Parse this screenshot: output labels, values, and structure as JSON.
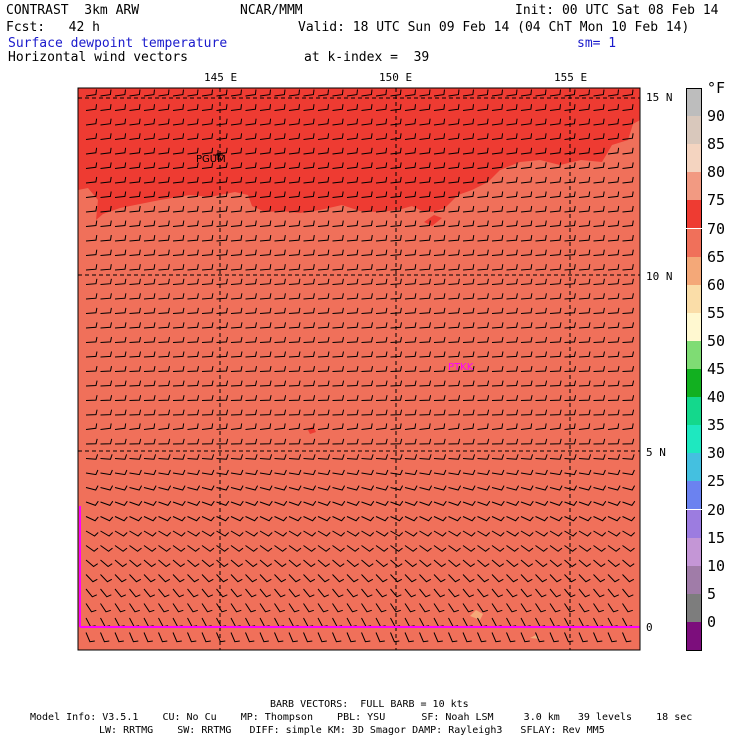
{
  "header": {
    "model": "CONTRAST  3km ARW",
    "org": "NCAR/MMM",
    "init": "Init: 00 UTC Sat 08 Feb 14",
    "fcst": "Fcst:   42 h",
    "valid": "Valid: 18 UTC Sun 09 Feb 14 (04 ChT Mon 10 Feb 14)",
    "field1": "Surface dewpoint temperature",
    "smoothing": "sm= 1",
    "field2": "Horizontal wind vectors",
    "kindex": "at k-index =  39"
  },
  "axes": {
    "lon_labels": [
      "145 E",
      "150 E",
      "155 E"
    ],
    "lat_labels": [
      "15 N",
      "10 N",
      "5 N",
      "0"
    ]
  },
  "stations": [
    {
      "id": "PGUM",
      "color": "#000000"
    },
    {
      "id": "PTKK",
      "color": "#ff00ff"
    }
  ],
  "colorbar": {
    "unit": "°F",
    "labels": [
      "90",
      "85",
      "80",
      "75",
      "70",
      "65",
      "60",
      "55",
      "50",
      "45",
      "40",
      "35",
      "30",
      "25",
      "20",
      "15",
      "10",
      "5",
      "0"
    ],
    "colors": [
      "#bdbdbd",
      "#d9c8bc",
      "#f4d4c0",
      "#f29a82",
      "#ee3b32",
      "#f0705a",
      "#f4a878",
      "#fadda8",
      "#fff8d0",
      "#7fdc74",
      "#12b020",
      "#14d88c",
      "#1ee8c0",
      "#44c0e0",
      "#6b82f0",
      "#9c7ce0",
      "#c496d6",
      "#a07ca8",
      "#7d7d7d",
      "#7c0e7c"
    ]
  },
  "footer": {
    "barb": "BARB VECTORS:  FULL BARB = 10 kts",
    "line1": "Model Info: V3.5.1    CU: No Cu    MP: Thompson    PBL: YSU      SF: Noah LSM     3.0 km   39 levels    18 sec",
    "line2": "LW: RRTMG    SW: RRTMG   DIFF: simple KM: 3D Smagor DAMP: Rayleigh3   SFLAY: Rev MM5"
  }
}
